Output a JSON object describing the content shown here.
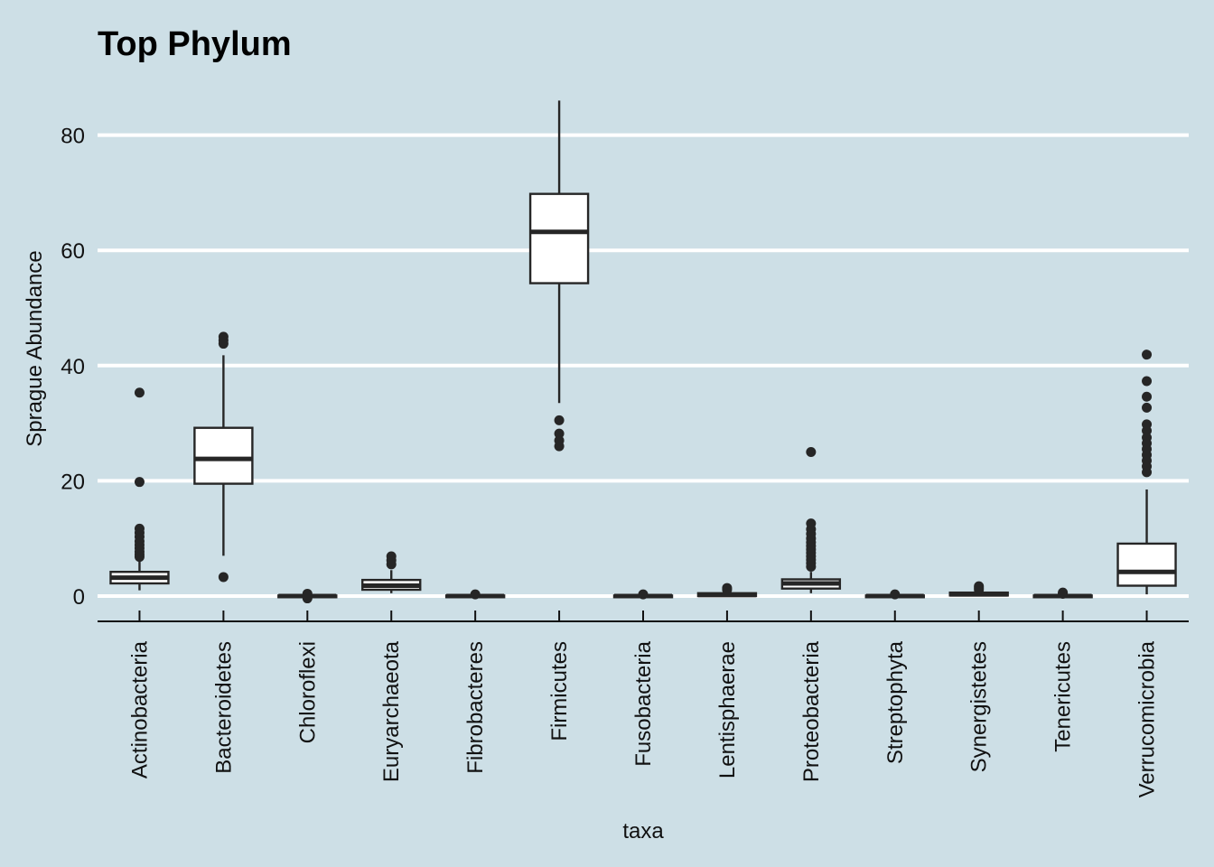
{
  "chart_data": {
    "type": "box",
    "title": "Top Phylum",
    "xlabel": "taxa",
    "ylabel": "Sprague Abundance",
    "ylim": [
      -4,
      88
    ],
    "yticks": [
      0,
      20,
      40,
      60,
      80
    ],
    "grid": "horizontal",
    "categories": [
      "Actinobacteria",
      "Bacteroidetes",
      "Chloroflexi",
      "Euryarchaeota",
      "Fibrobacteres",
      "Firmicutes",
      "Fusobacteria",
      "Lentisphaerae",
      "Proteobacteria",
      "Streptophyta",
      "Synergistetes",
      "Tenericutes",
      "Verrucomicrobia"
    ],
    "boxes": [
      {
        "q1": 2.2,
        "median": 3.2,
        "q3": 4.2,
        "whisker_low": 1.0,
        "whisker_high": 6.0,
        "outliers": [
          35.3,
          19.8,
          11.7,
          11.0,
          10.3,
          9.5,
          8.9,
          8.3,
          7.7,
          7.2,
          6.8
        ]
      },
      {
        "q1": 19.5,
        "median": 23.8,
        "q3": 29.2,
        "whisker_low": 7.0,
        "whisker_high": 41.8,
        "outliers": [
          45.0,
          44.4,
          43.8,
          3.3
        ]
      },
      {
        "q1": -0.2,
        "median": 0.0,
        "q3": 0.1,
        "whisker_low": -0.3,
        "whisker_high": 0.2,
        "outliers": [
          0.4,
          -0.4
        ]
      },
      {
        "q1": 1.1,
        "median": 1.8,
        "q3": 2.8,
        "whisker_low": 0.5,
        "whisker_high": 4.5,
        "outliers": [
          6.9,
          6.2,
          5.5
        ]
      },
      {
        "q1": -0.2,
        "median": 0.0,
        "q3": 0.1,
        "whisker_low": -0.3,
        "whisker_high": 0.2,
        "outliers": [
          0.3
        ]
      },
      {
        "q1": 54.3,
        "median": 63.2,
        "q3": 69.8,
        "whisker_low": 33.5,
        "whisker_high": 86.0,
        "outliers": [
          30.5,
          28.2,
          27.0,
          26.0
        ]
      },
      {
        "q1": -0.2,
        "median": 0.0,
        "q3": 0.1,
        "whisker_low": -0.3,
        "whisker_high": 0.2,
        "outliers": [
          0.3
        ]
      },
      {
        "q1": 0.0,
        "median": 0.2,
        "q3": 0.5,
        "whisker_low": -0.1,
        "whisker_high": 0.8,
        "outliers": [
          1.4,
          1.1
        ]
      },
      {
        "q1": 1.3,
        "median": 2.2,
        "q3": 2.9,
        "whisker_low": 0.5,
        "whisker_high": 4.2,
        "outliers": [
          25.0,
          12.6,
          11.6,
          10.8,
          10.0,
          9.3,
          8.7,
          8.1,
          7.5,
          6.9,
          6.3,
          5.7,
          5.1
        ]
      },
      {
        "q1": -0.2,
        "median": 0.0,
        "q3": 0.1,
        "whisker_low": -0.3,
        "whisker_high": 0.2,
        "outliers": [
          0.3
        ]
      },
      {
        "q1": 0.1,
        "median": 0.3,
        "q3": 0.6,
        "whisker_low": 0.0,
        "whisker_high": 0.9,
        "outliers": [
          1.7,
          1.4,
          1.1
        ]
      },
      {
        "q1": -0.2,
        "median": 0.0,
        "q3": 0.1,
        "whisker_low": -0.3,
        "whisker_high": 0.3,
        "outliers": [
          0.6,
          0.4
        ]
      },
      {
        "q1": 1.8,
        "median": 4.2,
        "q3": 9.1,
        "whisker_low": 0.3,
        "whisker_high": 18.5,
        "outliers": [
          41.9,
          37.3,
          34.6,
          32.7,
          29.8,
          28.7,
          27.5,
          26.5,
          25.5,
          24.5,
          23.5,
          22.5,
          21.5
        ]
      }
    ]
  }
}
